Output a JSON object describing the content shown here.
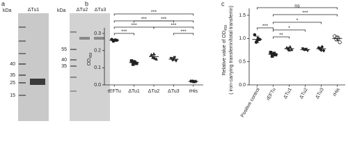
{
  "panel_labels": [
    "a",
    "b",
    "c"
  ],
  "gels": [
    {
      "unit": "kDa",
      "lanes": [
        "ΔTu1"
      ],
      "markers": [
        "40",
        "35",
        "25",
        "15"
      ]
    },
    {
      "unit": "kDa",
      "lanes": [
        "ΔTu2",
        "ΔTu3"
      ],
      "markers": [
        "55",
        "40",
        "35"
      ]
    }
  ],
  "chart_data": [
    {
      "type": "dotplot",
      "ylabel": {
        "main": "OD",
        "sub": "450"
      },
      "categories": [
        "rEFTu",
        "ΔTu1",
        "ΔTu2",
        "ΔTu3",
        "rHis"
      ],
      "markers": [
        "circle",
        "square",
        "triangle",
        "triangle-down",
        "diamond"
      ],
      "color": "#222222",
      "points": [
        [
          0.265,
          0.26,
          0.255,
          0.262,
          0.258
        ],
        [
          0.14,
          0.125,
          0.12,
          0.13,
          0.135
        ],
        [
          0.175,
          0.15,
          0.16,
          0.155,
          0.18
        ],
        [
          0.155,
          0.14,
          0.145,
          0.16,
          0.15
        ],
        [
          0.022,
          0.02,
          0.021,
          0.019,
          0.02
        ]
      ],
      "means": [
        0.26,
        0.13,
        0.165,
        0.15,
        0.02
      ],
      "sd": [
        0.005,
        0.01,
        0.012,
        0.008,
        0.001
      ],
      "ylim": [
        0,
        0.3
      ],
      "yticks": [
        {
          "value": 0,
          "label": "0.0"
        },
        0.1,
        0.2,
        0.3
      ],
      "comparisons": [
        {
          "from": "rEFTu",
          "to": "rHis",
          "label": "***"
        },
        {
          "from": "rEFTu",
          "to": "ΔTu3",
          "label": "***"
        },
        {
          "from": "ΔTu1",
          "to": "rHis",
          "label": "***"
        },
        {
          "from": "rEFTu",
          "to": "ΔTu2",
          "label": "***"
        },
        {
          "from": "ΔTu2",
          "to": "rHis",
          "label": "***"
        },
        {
          "from": "rEFTu",
          "to": "ΔTu1",
          "label": "***"
        },
        {
          "from": "ΔTu3",
          "to": "rHis",
          "label": "***"
        }
      ]
    },
    {
      "type": "dotplot",
      "ylabel": {
        "main": "Relative value of OD",
        "sub": "450"
      },
      "ylabel2": "( iron-carrying transferrin/total transferrin)",
      "categories": [
        "Positive control",
        "rEFTu",
        "ΔTu1",
        "ΔTu2",
        "ΔTu3",
        "rHis"
      ],
      "markers": [
        "circle",
        "square",
        "triangle",
        "triangle-down",
        "diamond",
        "circle-open"
      ],
      "color": "#222222",
      "points": [
        [
          1.08,
          0.98,
          0.92,
          1.0,
          0.95
        ],
        [
          0.7,
          0.65,
          0.62,
          0.68,
          0.66
        ],
        [
          0.8,
          0.76,
          0.78,
          0.82,
          0.75
        ],
        [
          0.78,
          0.74,
          0.76,
          0.77
        ],
        [
          0.8,
          0.74,
          0.77,
          0.82,
          0.75
        ],
        [
          1.05,
          0.92,
          0.98,
          1.0,
          1.02
        ]
      ],
      "means": [
        0.98,
        0.66,
        0.78,
        0.76,
        0.78,
        1.0
      ],
      "sd": [
        0.07,
        0.03,
        0.03,
        0.02,
        0.03,
        0.05
      ],
      "ylim": [
        0,
        1.5
      ],
      "yticks": [
        {
          "value": 0,
          "label": "0.0"
        },
        0.5,
        {
          "value": 1,
          "label": "1.0"
        },
        1.5
      ],
      "comparisons": [
        {
          "from": "Positive control",
          "to": "rHis",
          "label": "ns"
        },
        {
          "from": "rEFTu",
          "to": "rHis",
          "label": "***"
        },
        {
          "from": "rEFTu",
          "to": "ΔTu3",
          "label": "*"
        },
        {
          "from": "Positive control",
          "to": "rEFTu",
          "label": "***"
        },
        {
          "from": "rEFTu",
          "to": "ΔTu2",
          "label": "*"
        },
        {
          "from": "rEFTu",
          "to": "ΔTu1",
          "label": "**"
        }
      ]
    }
  ]
}
